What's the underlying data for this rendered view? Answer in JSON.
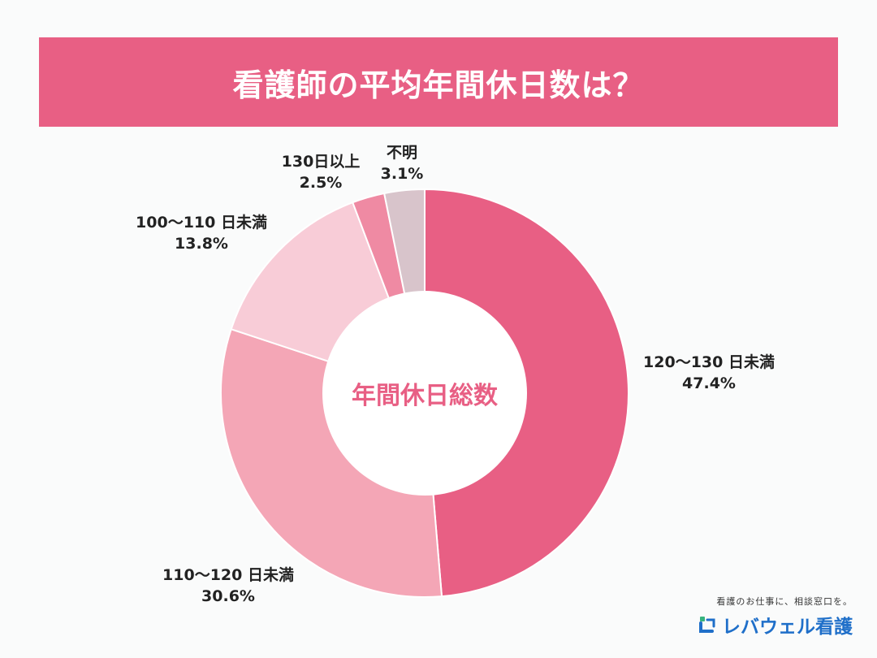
{
  "header": {
    "title": "看護師の平均年間休日数は？"
  },
  "chart_data": {
    "type": "pie",
    "donut": true,
    "center_label": "年間休日総数",
    "slices": [
      {
        "label": "120〜130 日未満",
        "value": 47.4,
        "display": "47.4%",
        "color": "#e85f84"
      },
      {
        "label": "110〜120 日未満",
        "value": 30.6,
        "display": "30.6%",
        "color": "#f4a6b6"
      },
      {
        "label": "100〜110 日未満",
        "value": 13.8,
        "display": "13.8%",
        "color": "#f8ccd7"
      },
      {
        "label": "130日以上",
        "value": 2.5,
        "display": "2.5%",
        "color": "#ef8aa3"
      },
      {
        "label": "不明",
        "value": 3.1,
        "display": "3.1%",
        "color": "#d8c4cb"
      }
    ],
    "slice_order_clockwise_from_top": [
      "120〜130 日未満",
      "110〜120 日未満",
      "100〜110 日未満",
      "130日以上",
      "不明"
    ]
  },
  "brand": {
    "tagline": "看護のお仕事に、相談窓口を。",
    "name": "レバウェル看護",
    "colors": {
      "blue": "#1f6fc9",
      "green": "#37b37e"
    }
  }
}
